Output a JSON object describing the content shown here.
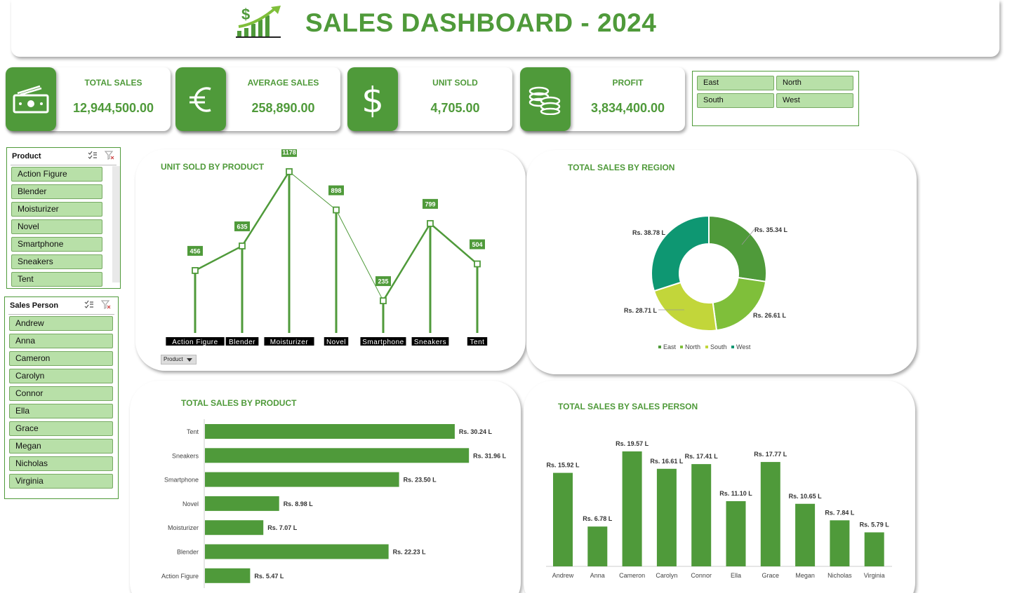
{
  "header": {
    "title": "SALES DASHBOARD - 2024",
    "logo_icon": "dollar-growth-chart-icon"
  },
  "kpis": [
    {
      "label": "TOTAL SALES",
      "value": "12,944,500.00",
      "icon": "cash-icon"
    },
    {
      "label": "AVERAGE SALES",
      "value": "258,890.00",
      "icon": "euro-icon"
    },
    {
      "label": "UNIT SOLD",
      "value": "4,705.00",
      "icon": "dollar-icon"
    },
    {
      "label": "PROFIT",
      "value": "3,834,400.00",
      "icon": "coins-icon"
    }
  ],
  "region_slicer": {
    "items": [
      "East",
      "North",
      "South",
      "West"
    ]
  },
  "product_slicer": {
    "title": "Product",
    "items": [
      "Action Figure",
      "Blender",
      "Moisturizer",
      "Novel",
      "Smartphone",
      "Sneakers",
      "Tent"
    ]
  },
  "salesperson_slicer": {
    "title": "Sales Person",
    "items": [
      "Andrew",
      "Anna",
      "Cameron",
      "Carolyn",
      "Connor",
      "Ella",
      "Grace",
      "Megan",
      "Nicholas",
      "Virginia"
    ]
  },
  "unit_chart": {
    "title": "UNIT SOLD BY PRODUCT",
    "field_button": "Product"
  },
  "region_chart": {
    "title": "TOTAL SALES BY REGION"
  },
  "product_chart": {
    "title": "TOTAL SALES BY PRODUCT"
  },
  "person_chart": {
    "title": "TOTAL SALES BY SALES PERSON"
  },
  "colors": {
    "accent": "#4f9a3a",
    "slicer_fill": "#b8e0a8",
    "east": "#4f9a3a",
    "north": "#7fbf3a",
    "south": "#c2d63a",
    "west": "#0e9772"
  },
  "chart_data": [
    {
      "type": "line",
      "title": "UNIT SOLD BY PRODUCT",
      "categories": [
        "Action Figure",
        "Blender",
        "Moisturizer",
        "Novel",
        "Smartphone",
        "Sneakers",
        "Tent"
      ],
      "values": [
        456,
        635,
        1178,
        898,
        235,
        799,
        504
      ],
      "data_labels": [
        "456",
        "635",
        "1178",
        "898",
        "235",
        "799",
        "504"
      ],
      "grid": false
    },
    {
      "type": "pie",
      "title": "TOTAL SALES BY REGION",
      "categories": [
        "East",
        "North",
        "South",
        "West"
      ],
      "values": [
        35.34,
        26.61,
        28.71,
        38.78
      ],
      "data_labels": [
        "Rs. 35.34 L",
        "Rs. 26.61 L",
        "Rs. 28.71 L",
        "Rs. 38.78 L"
      ],
      "legend": "bottom",
      "donut": true
    },
    {
      "type": "bar",
      "orientation": "horizontal",
      "title": "TOTAL SALES BY PRODUCT",
      "categories": [
        "Tent",
        "Sneakers",
        "Smartphone",
        "Novel",
        "Moisturizer",
        "Blender",
        "Action Figure"
      ],
      "values": [
        30.24,
        31.96,
        23.5,
        8.98,
        7.07,
        22.23,
        5.47
      ],
      "data_labels": [
        "Rs. 30.24 L",
        "Rs. 31.96 L",
        "Rs. 23.50 L",
        "Rs. 8.98 L",
        "Rs. 7.07 L",
        "Rs. 22.23 L",
        "Rs. 5.47 L"
      ],
      "grid": false
    },
    {
      "type": "bar",
      "title": "TOTAL SALES BY SALES PERSON",
      "categories": [
        "Andrew",
        "Anna",
        "Cameron",
        "Carolyn",
        "Connor",
        "Ella",
        "Grace",
        "Megan",
        "Nicholas",
        "Virginia"
      ],
      "values": [
        15.92,
        6.78,
        19.57,
        16.61,
        17.41,
        11.1,
        17.77,
        10.65,
        7.84,
        5.79
      ],
      "data_labels": [
        "Rs. 15.92 L",
        "Rs. 6.78 L",
        "Rs. 19.57 L",
        "Rs. 16.61 L",
        "Rs. 17.41 L",
        "Rs. 11.10 L",
        "Rs. 17.77 L",
        "Rs. 10.65 L",
        "Rs. 7.84 L",
        "Rs. 5.79 L"
      ],
      "grid": false
    }
  ]
}
